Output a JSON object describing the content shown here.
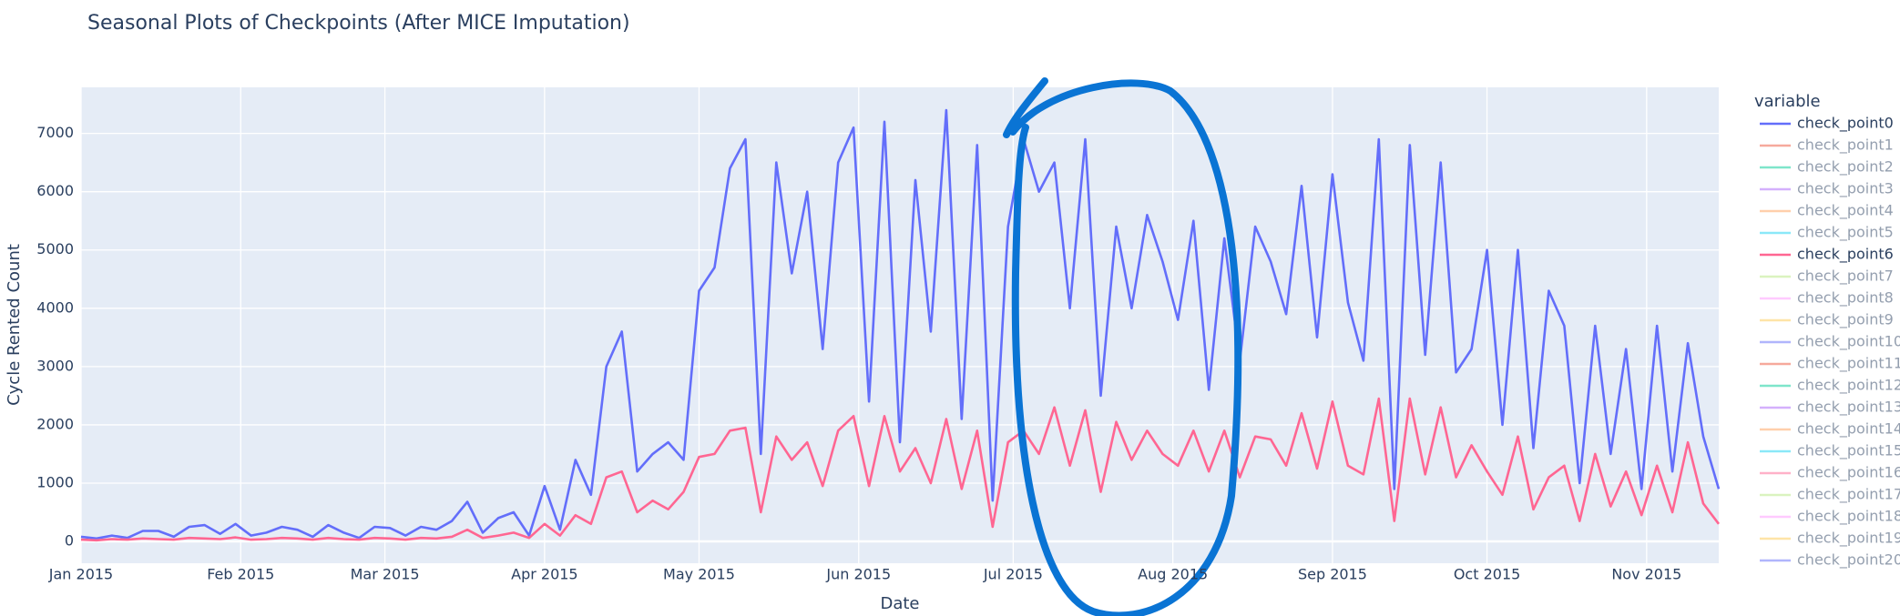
{
  "chart_data": {
    "type": "line",
    "title": "Seasonal Plots of Checkpoints (After MICE Imputation)",
    "x_label": "Date",
    "y_label": "Cycle Rented Count",
    "legend_title": "variable",
    "x": [
      "2015-01-01",
      "2015-01-04",
      "2015-01-07",
      "2015-01-10",
      "2015-01-13",
      "2015-01-16",
      "2015-01-19",
      "2015-01-22",
      "2015-01-25",
      "2015-01-28",
      "2015-01-31",
      "2015-02-03",
      "2015-02-06",
      "2015-02-09",
      "2015-02-12",
      "2015-02-15",
      "2015-02-18",
      "2015-02-21",
      "2015-02-24",
      "2015-02-27",
      "2015-03-02",
      "2015-03-05",
      "2015-03-08",
      "2015-03-11",
      "2015-03-14",
      "2015-03-17",
      "2015-03-20",
      "2015-03-23",
      "2015-03-26",
      "2015-03-29",
      "2015-04-01",
      "2015-04-04",
      "2015-04-07",
      "2015-04-10",
      "2015-04-13",
      "2015-04-16",
      "2015-04-19",
      "2015-04-22",
      "2015-04-25",
      "2015-04-28",
      "2015-05-01",
      "2015-05-04",
      "2015-05-07",
      "2015-05-10",
      "2015-05-13",
      "2015-05-16",
      "2015-05-19",
      "2015-05-22",
      "2015-05-25",
      "2015-05-28",
      "2015-05-31",
      "2015-06-03",
      "2015-06-06",
      "2015-06-09",
      "2015-06-12",
      "2015-06-15",
      "2015-06-18",
      "2015-06-21",
      "2015-06-24",
      "2015-06-27",
      "2015-06-30",
      "2015-07-03",
      "2015-07-06",
      "2015-07-09",
      "2015-07-12",
      "2015-07-15",
      "2015-07-18",
      "2015-07-21",
      "2015-07-24",
      "2015-07-27",
      "2015-07-30",
      "2015-08-02",
      "2015-08-05",
      "2015-08-08",
      "2015-08-11",
      "2015-08-14",
      "2015-08-17",
      "2015-08-20",
      "2015-08-23",
      "2015-08-26",
      "2015-08-29",
      "2015-09-01",
      "2015-09-04",
      "2015-09-07",
      "2015-09-10",
      "2015-09-13",
      "2015-09-16",
      "2015-09-19",
      "2015-09-22",
      "2015-09-25",
      "2015-09-28",
      "2015-10-01",
      "2015-10-04",
      "2015-10-07",
      "2015-10-10",
      "2015-10-13",
      "2015-10-16",
      "2015-10-19",
      "2015-10-22",
      "2015-10-25",
      "2015-10-28",
      "2015-10-31",
      "2015-11-03",
      "2015-11-06",
      "2015-11-09",
      "2015-11-12",
      "2015-11-15"
    ],
    "series": [
      {
        "name": "check_point0",
        "color": "#636efa",
        "visible": true,
        "values": [
          80,
          50,
          100,
          60,
          180,
          180,
          80,
          250,
          280,
          130,
          300,
          100,
          150,
          250,
          200,
          80,
          280,
          150,
          60,
          250,
          230,
          100,
          250,
          200,
          350,
          680,
          150,
          400,
          500,
          100,
          950,
          200,
          1400,
          800,
          3000,
          3600,
          1200,
          1500,
          1700,
          1400,
          4300,
          4700,
          6400,
          6900,
          1500,
          6500,
          4600,
          6000,
          3300,
          6500,
          7100,
          2400,
          7200,
          1700,
          6200,
          3600,
          7400,
          2100,
          6800,
          700,
          5400,
          6900,
          6000,
          6500,
          4000,
          6900,
          2500,
          5400,
          4000,
          5600,
          4800,
          3800,
          5500,
          2600,
          5200,
          3100,
          5400,
          4800,
          3900,
          6100,
          3500,
          6300,
          4100,
          3100,
          6900,
          900,
          6800,
          3200,
          6500,
          2900,
          3300,
          5000,
          2000,
          5000,
          1600,
          4300,
          3700,
          1000,
          3700,
          1500,
          3300,
          900,
          3700,
          1200,
          3400,
          1800,
          900
        ]
      },
      {
        "name": "check_point1",
        "color": "#EF553B",
        "visible": false
      },
      {
        "name": "check_point2",
        "color": "#00cc96",
        "visible": false
      },
      {
        "name": "check_point3",
        "color": "#ab63fa",
        "visible": false
      },
      {
        "name": "check_point4",
        "color": "#FFA15A",
        "visible": false
      },
      {
        "name": "check_point5",
        "color": "#19d3f3",
        "visible": false
      },
      {
        "name": "check_point6",
        "color": "#FF6692",
        "visible": true,
        "values": [
          30,
          20,
          40,
          30,
          50,
          40,
          30,
          60,
          50,
          40,
          70,
          30,
          40,
          60,
          50,
          30,
          60,
          40,
          30,
          60,
          50,
          30,
          60,
          50,
          80,
          200,
          60,
          100,
          150,
          60,
          300,
          100,
          450,
          300,
          1100,
          1200,
          500,
          700,
          550,
          850,
          1450,
          1500,
          1900,
          1950,
          500,
          1800,
          1400,
          1700,
          950,
          1900,
          2150,
          950,
          2150,
          1200,
          1600,
          1000,
          2100,
          900,
          1900,
          250,
          1700,
          1900,
          1500,
          2300,
          1300,
          2250,
          850,
          2050,
          1400,
          1900,
          1500,
          1300,
          1900,
          1200,
          1900,
          1100,
          1800,
          1750,
          1300,
          2200,
          1250,
          2400,
          1300,
          1150,
          2450,
          350,
          2450,
          1150,
          2300,
          1100,
          1650,
          1200,
          800,
          1800,
          550,
          1100,
          1300,
          350,
          1500,
          600,
          1200,
          450,
          1300,
          500,
          1700,
          650,
          300
        ]
      },
      {
        "name": "check_point7",
        "color": "#B6E880",
        "visible": false
      },
      {
        "name": "check_point8",
        "color": "#FF97FF",
        "visible": false
      },
      {
        "name": "check_point9",
        "color": "#FECB52",
        "visible": false
      },
      {
        "name": "check_point10",
        "color": "#636efa",
        "visible": false
      },
      {
        "name": "check_point11",
        "color": "#EF553B",
        "visible": false
      },
      {
        "name": "check_point12",
        "color": "#00cc96",
        "visible": false
      },
      {
        "name": "check_point13",
        "color": "#ab63fa",
        "visible": false
      },
      {
        "name": "check_point14",
        "color": "#FFA15A",
        "visible": false
      },
      {
        "name": "check_point15",
        "color": "#19d3f3",
        "visible": false
      },
      {
        "name": "check_point16",
        "color": "#FF6692",
        "visible": false
      },
      {
        "name": "check_point17",
        "color": "#B6E880",
        "visible": false
      },
      {
        "name": "check_point18",
        "color": "#FF97FF",
        "visible": false
      },
      {
        "name": "check_point19",
        "color": "#FECB52",
        "visible": false
      },
      {
        "name": "check_point20",
        "color": "#636efa",
        "visible": false
      }
    ],
    "xlim": [
      "2015-01-01",
      "2015-11-15"
    ],
    "xticks": [
      {
        "value": "2015-01-01",
        "label": "Jan 2015"
      },
      {
        "value": "2015-02-01",
        "label": "Feb 2015"
      },
      {
        "value": "2015-03-01",
        "label": "Mar 2015"
      },
      {
        "value": "2015-04-01",
        "label": "Apr 2015"
      },
      {
        "value": "2015-05-01",
        "label": "May 2015"
      },
      {
        "value": "2015-06-01",
        "label": "Jun 2015"
      },
      {
        "value": "2015-07-01",
        "label": "Jul 2015"
      },
      {
        "value": "2015-08-01",
        "label": "Aug 2015"
      },
      {
        "value": "2015-09-01",
        "label": "Sep 2015"
      },
      {
        "value": "2015-10-01",
        "label": "Oct 2015"
      },
      {
        "value": "2015-11-01",
        "label": "Nov 2015"
      }
    ],
    "ylim": [
      -374,
      7790
    ],
    "yticks": [
      0,
      1000,
      2000,
      3000,
      4000,
      5000,
      6000,
      7000
    ],
    "grid": true
  }
}
